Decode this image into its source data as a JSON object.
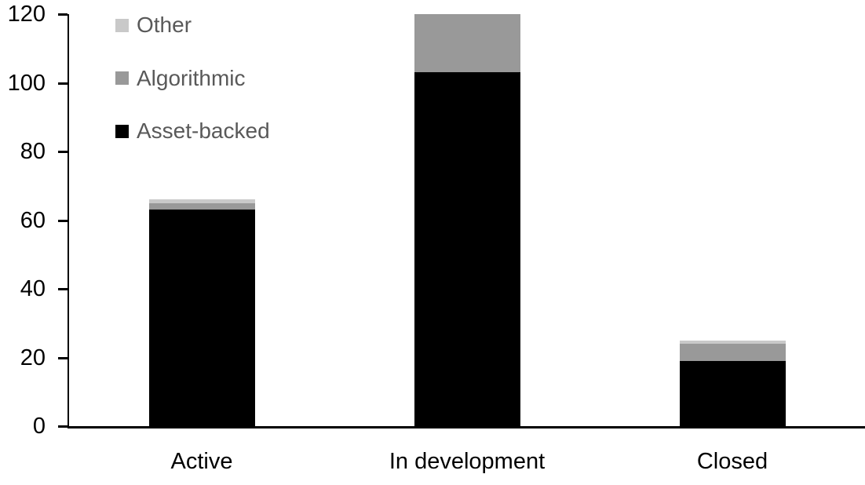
{
  "chart_data": {
    "type": "bar",
    "stacked": true,
    "title": "",
    "xlabel": "",
    "ylabel": "",
    "categories": [
      "Active",
      "In development",
      "Closed"
    ],
    "series": [
      {
        "name": "Asset-backed",
        "color": "#000000",
        "values": [
          63,
          103,
          19
        ]
      },
      {
        "name": "Algorithmic",
        "color": "#999999",
        "values": [
          2,
          17,
          5
        ]
      },
      {
        "name": "Other",
        "color": "#c9c9c9",
        "values": [
          1,
          0,
          1
        ]
      }
    ],
    "totals": [
      66,
      120,
      25
    ],
    "legend_items": [
      "Other",
      "Algorithmic",
      "Asset-backed"
    ],
    "legend_position": "top-left",
    "ylim": [
      0,
      120
    ],
    "yticks": [
      0,
      20,
      40,
      60,
      80,
      100,
      120
    ],
    "grid": false
  },
  "colors": {
    "background": "#ffffff",
    "axis": "#000000",
    "axis_text": "#000000",
    "legend_text": "#595959"
  }
}
